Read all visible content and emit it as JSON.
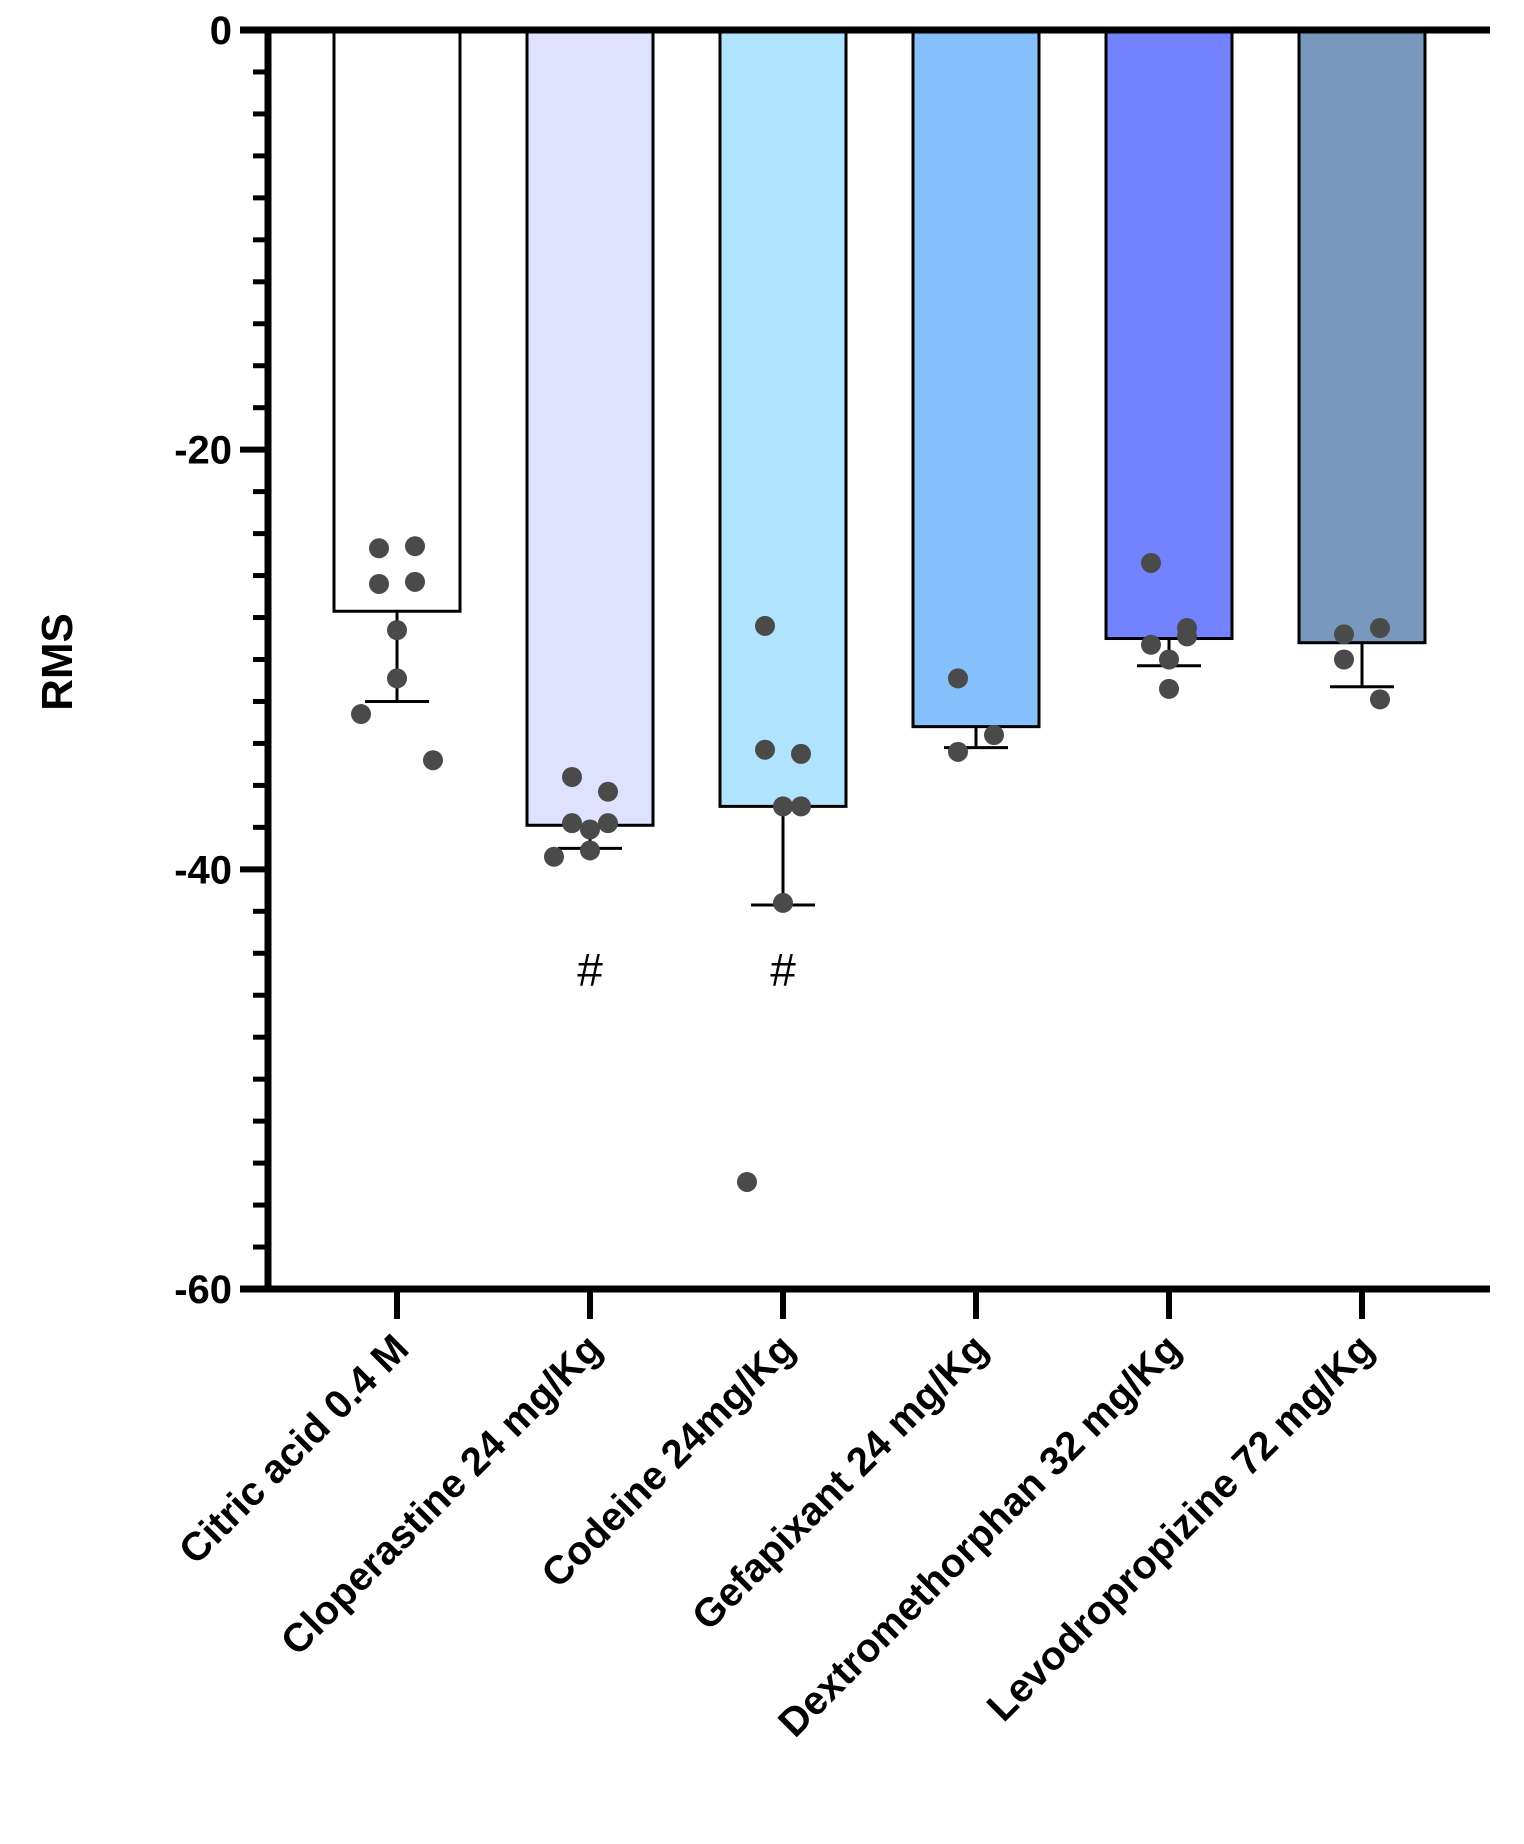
{
  "chart_data": {
    "type": "bar",
    "title": "",
    "xlabel": "",
    "ylabel": "RMS",
    "ylim": [
      -60,
      0
    ],
    "yticks": [
      0,
      -20,
      -40,
      -60
    ],
    "ytick_labels": [
      "0",
      "-20",
      "-40",
      "-60"
    ],
    "minor_tick_step": 2,
    "grid": false,
    "legend": "none",
    "categories": [
      "Citric acid 0.4 M",
      "Cloperastine 24 mg/Kg",
      "Codeine  24mg/Kg",
      "Gefapixant  24 mg/Kg",
      "Dextromethorphan 32 mg/Kg",
      "Levodropropizine 72 mg/Kg"
    ],
    "values": [
      -27.7,
      -37.9,
      -37.0,
      -33.2,
      -29.0,
      -29.2
    ],
    "error_lower": [
      -32.0,
      -39.0,
      -41.7,
      -34.2,
      -30.3,
      -31.3
    ],
    "points": [
      [
        -24.7,
        -24.6,
        -26.4,
        -26.3,
        -28.6,
        -30.9,
        -32.6,
        -34.8
      ],
      [
        -35.6,
        -36.3,
        -37.8,
        -37.8,
        -38.1,
        -39.1,
        -39.4
      ],
      [
        -28.4,
        -34.5,
        -34.3,
        -37.0,
        -37.0,
        -41.6,
        -54.9
      ],
      [
        -30.9,
        -33.6,
        -34.4
      ],
      [
        -25.4,
        -28.5,
        -29.3,
        -28.9,
        -30.0,
        -31.4
      ],
      [
        -28.8,
        -28.5,
        -30.0,
        -31.9
      ]
    ],
    "bar_colors": [
      "#ffffff",
      "#dfe2fe",
      "#b0e3fd",
      "#85c0fd",
      "#7383ff",
      "#7898bd"
    ],
    "point_color": "#4a4a4a",
    "annotations": [
      {
        "category_index": 1,
        "text": "#",
        "y": -44.8
      },
      {
        "category_index": 2,
        "text": "#",
        "y": -44.8
      }
    ]
  }
}
